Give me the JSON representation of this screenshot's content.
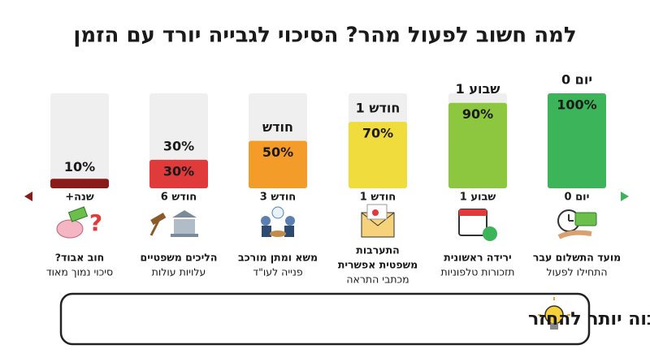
{
  "chart_data": {
    "type": "bar",
    "title": "למה חשוב לפעול מהר? הסיכוי לגבייה יורד עם הזמן",
    "categories": [
      "יום 0",
      "שבוע 1",
      "חודש 1",
      "חודש 3",
      "חודש 6",
      "שנה+"
    ],
    "top_labels": [
      "יום 0",
      "שבוע 1",
      "חודש 1",
      "חודש",
      "30%",
      null
    ],
    "values": [
      100,
      90,
      70,
      50,
      30,
      10
    ],
    "value_labels": [
      "100%",
      "90%",
      "70%",
      "50%",
      "30%",
      "10%"
    ],
    "colors": [
      "#3cb55a",
      "#8dc63f",
      "#f0dc3c",
      "#f39c2a",
      "#e03a3a",
      "#8b1a1a"
    ],
    "ylim": [
      0,
      100
    ],
    "descriptions": [
      [
        "מועד התשלום עבר",
        "התחילו לפעול"
      ],
      [
        "ירידה ראשונית",
        "תזכורות טלפוניות"
      ],
      [
        "התערבות",
        "משפטית אפשרית",
        "מכתבי התראה"
      ],
      [
        "משא ומתן מורכב",
        "פנייה לעו\"ד"
      ],
      [
        "הליכים משפטיים",
        "עלויות עולות"
      ],
      [
        "חוב אבוד?",
        "סיכוי נמוך מאוד"
      ]
    ],
    "conclusion": "מסקנה: גביית חובות מוקדמת = סיכוי גבוה יותר להחזר"
  }
}
